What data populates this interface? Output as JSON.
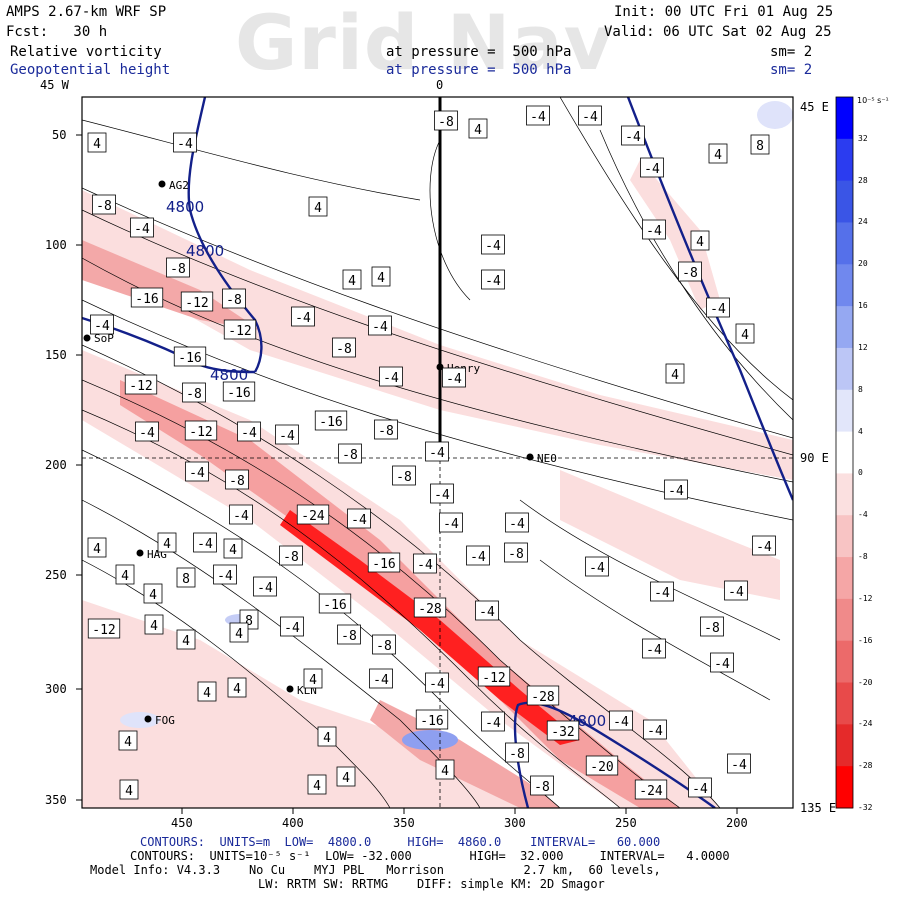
{
  "header": {
    "model": "AMPS 2.67-km WRF SP",
    "init": "Init: 00 UTC Fri 01 Aug 25",
    "fcst": "Fcst:   30 h",
    "valid": "Valid: 06 UTC Sat 02 Aug 25",
    "field1": "Relative vorticity",
    "field1_level": "at pressure =  500 hPa",
    "field1_sm": "sm= 2",
    "field2": "Geopotential height",
    "field2_level": "at pressure =  500 hPa",
    "field2_sm": "sm= 2",
    "watermark": "Grid Nav"
  },
  "axes": {
    "top_labels": [
      "45 W",
      "0"
    ],
    "right_labels": [
      "45 E",
      "90 E",
      "135 E"
    ],
    "left_ticks": [
      "50",
      "100",
      "150",
      "200",
      "250",
      "300",
      "350"
    ],
    "bottom_ticks": [
      "450",
      "400",
      "350",
      "300",
      "250",
      "200"
    ]
  },
  "stations": [
    {
      "name": "AG2"
    },
    {
      "name": "SoP"
    },
    {
      "name": "Henry"
    },
    {
      "name": "NEO"
    },
    {
      "name": "HAG"
    },
    {
      "name": "KLN"
    },
    {
      "name": "FOG"
    }
  ],
  "height_labels": [
    "4800",
    "4800",
    "4800",
    "4800"
  ],
  "vort_labels": {
    "pos4": "4",
    "pos8": "8",
    "neg4": "-4",
    "neg8": "-8",
    "neg12": "-12",
    "neg16": "-16",
    "neg20": "-20",
    "neg24": "-24",
    "neg28": "-28",
    "neg32": "-32"
  },
  "colorbar": {
    "unit": "10⁻⁵ s⁻¹",
    "labels": [
      "32",
      "28",
      "24",
      "20",
      "16",
      "12",
      "8",
      "4",
      "0",
      "-4",
      "-8",
      "-12",
      "-16",
      "-20",
      "-24",
      "-28",
      "-32"
    ],
    "colors": [
      "#0000ff",
      "#2b3cf0",
      "#3a55e6",
      "#5570ea",
      "#7088ee",
      "#95a8f2",
      "#bcc6f6",
      "#e2e6fa",
      "#ffffff",
      "#fbe0e0",
      "#f8c4c4",
      "#f5a6a6",
      "#f08a8a",
      "#ec6a6a",
      "#e84a4a",
      "#e52a2a",
      "#ff0000"
    ]
  },
  "footer": {
    "line1_prefix": "CONTOURS:  UNITS=m  LOW=  4800.0",
    "line1_high": "HIGH=  4860.0",
    "line1_interval": "INTERVAL=   60.000",
    "line2": "CONTOURS:  UNITS=10⁻⁵ s⁻¹  LOW= -32.000        HIGH=  32.000     INTERVAL=   4.0000",
    "line3": "Model Info: V4.3.3    No Cu    MYJ PBL   Morrison           2.7 km,  60 levels,",
    "line4": "LW: RRTM SW: RRTMG    DIFF: simple KM: 2D Smagor"
  }
}
